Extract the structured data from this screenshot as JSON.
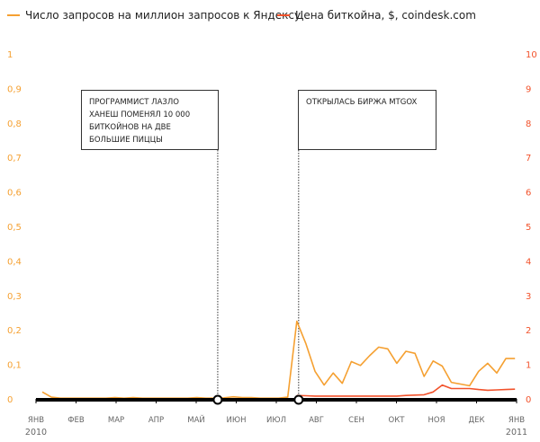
{
  "chart_data": {
    "type": "line",
    "legend": [
      {
        "name": "Число запросов на миллион запросов к Яндексу",
        "color": "#f5a031"
      },
      {
        "name": "Цена биткойна, $, coindesk.com",
        "color": "#f2522b"
      }
    ],
    "legend_position": "top-left",
    "x_ticks": [
      "ЯНВ",
      "ФЕВ",
      "МАР",
      "АПР",
      "МАЙ",
      "ИЮН",
      "ИЮЛ",
      "АВГ",
      "СЕН",
      "ОКТ",
      "НОЯ",
      "ДЕК",
      "ЯНВ"
    ],
    "x_years": {
      "start": "2010",
      "end": "2011"
    },
    "x_unit": "week of 2010",
    "left_axis": {
      "ticks": [
        "0",
        "0,1",
        "0,2",
        "0,3",
        "0,4",
        "0,5",
        "0,6",
        "0,7",
        "0,8",
        "0,9",
        "1"
      ],
      "ylim": [
        0,
        1
      ],
      "color": "#f5a031"
    },
    "right_axis": {
      "ticks": [
        "0",
        "1",
        "2",
        "3",
        "4",
        "5",
        "6",
        "7",
        "8",
        "9",
        "10"
      ],
      "ylim": [
        0,
        10
      ],
      "color": "#f2522b"
    },
    "series": [
      {
        "name": "Число запросов на миллион запросов к Яндексу",
        "axis": "left",
        "start_week": 0,
        "values": [
          0.02,
          0.005,
          0.002,
          0.002,
          0.002,
          0.002,
          0.002,
          0.002,
          0.004,
          0.002,
          0.004,
          0.002,
          0.002,
          0.002,
          0.002,
          0.002,
          0.002,
          0.004,
          0.002,
          0.002,
          0.003,
          0.006,
          0.004,
          0.004,
          0.002,
          0.002,
          0.002,
          0.005,
          0.225,
          0.16,
          0.08,
          0.04,
          0.075,
          0.045,
          0.108,
          0.097,
          0.125,
          0.15,
          0.145,
          0.103,
          0.138,
          0.132,
          0.065,
          0.11,
          0.095,
          0.048,
          0.043,
          0.038,
          0.08,
          0.103,
          0.075,
          0.117,
          0.117
        ]
      },
      {
        "name": "Цена биткойна, $, coindesk.com",
        "axis": "right",
        "start_week": 28,
        "values": [
          0.1,
          0.09,
          0.08,
          0.08,
          0.08,
          0.08,
          0.08,
          0.08,
          0.08,
          0.08,
          0.08,
          0.08,
          0.1,
          0.11,
          0.12,
          0.2,
          0.4,
          0.3,
          0.3,
          0.3,
          0.27,
          0.25,
          0.26,
          0.27,
          0.28
        ]
      }
    ],
    "annotations": [
      {
        "text": "ПРОГРАММИСТ ЛАЗЛО ХАНЕШ ПОМЕНЯЛ 10 000 БИТКОЙНОВ НА ДВЕ БОЛЬШИЕ ПИЦЦЫ",
        "week": 19.3
      },
      {
        "text": "ОТКРЫЛАСЬ БИРЖА MTGOX",
        "week": 28.2
      }
    ]
  }
}
